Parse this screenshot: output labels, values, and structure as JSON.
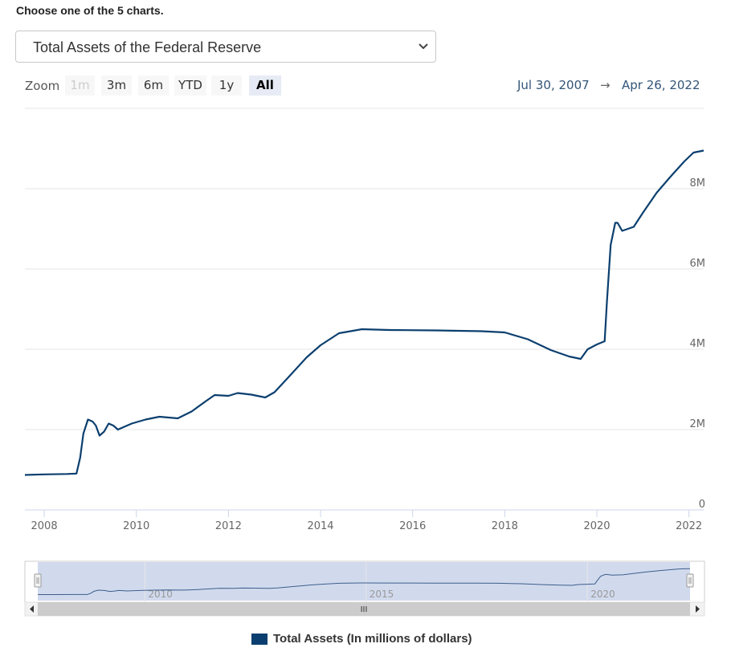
{
  "heading": "Choose one of the 5 charts.",
  "selector": {
    "value": "Total Assets of the Federal Reserve",
    "icon": "chevron-down-icon"
  },
  "zoom": {
    "label": "Zoom",
    "buttons": [
      {
        "label": "1m",
        "state": "disabled"
      },
      {
        "label": "3m",
        "state": "normal"
      },
      {
        "label": "6m",
        "state": "normal"
      },
      {
        "label": "YTD",
        "state": "normal"
      },
      {
        "label": "1y",
        "state": "normal"
      },
      {
        "label": "All",
        "state": "active"
      }
    ]
  },
  "range": {
    "from": "Jul 30, 2007",
    "arrow": "→",
    "to": "Apr 26, 2022"
  },
  "colors": {
    "series": "#0b3f6f",
    "navigator_mask": "rgba(102,133,194,0.3)",
    "grid": "#e6e6e6"
  },
  "chart_data": {
    "type": "line",
    "title": "",
    "xlabel": "",
    "ylabel": "",
    "x_range": [
      2007.58,
      2022.32
    ],
    "ylim": [
      0,
      10000000
    ],
    "x_ticks": [
      "2008",
      "2010",
      "2012",
      "2014",
      "2016",
      "2018",
      "2020",
      "2022"
    ],
    "y_ticks": [
      "0",
      "2M",
      "4M",
      "6M",
      "8M"
    ],
    "series": [
      {
        "name": "Total Assets (In millions of dollars)",
        "points": [
          [
            2007.58,
            870000
          ],
          [
            2008.0,
            885000
          ],
          [
            2008.5,
            895000
          ],
          [
            2008.7,
            905000
          ],
          [
            2008.78,
            1300000
          ],
          [
            2008.85,
            1900000
          ],
          [
            2008.95,
            2250000
          ],
          [
            2009.05,
            2200000
          ],
          [
            2009.12,
            2100000
          ],
          [
            2009.2,
            1850000
          ],
          [
            2009.3,
            1950000
          ],
          [
            2009.4,
            2150000
          ],
          [
            2009.5,
            2100000
          ],
          [
            2009.6,
            2000000
          ],
          [
            2009.7,
            2050000
          ],
          [
            2009.9,
            2150000
          ],
          [
            2010.2,
            2250000
          ],
          [
            2010.5,
            2320000
          ],
          [
            2010.9,
            2280000
          ],
          [
            2011.2,
            2450000
          ],
          [
            2011.5,
            2700000
          ],
          [
            2011.7,
            2860000
          ],
          [
            2012.0,
            2840000
          ],
          [
            2012.2,
            2910000
          ],
          [
            2012.5,
            2870000
          ],
          [
            2012.8,
            2800000
          ],
          [
            2013.0,
            2930000
          ],
          [
            2013.3,
            3300000
          ],
          [
            2013.7,
            3800000
          ],
          [
            2014.0,
            4100000
          ],
          [
            2014.4,
            4400000
          ],
          [
            2014.9,
            4500000
          ],
          [
            2015.5,
            4480000
          ],
          [
            2016.5,
            4470000
          ],
          [
            2017.5,
            4450000
          ],
          [
            2018.0,
            4420000
          ],
          [
            2018.5,
            4250000
          ],
          [
            2019.0,
            3980000
          ],
          [
            2019.4,
            3820000
          ],
          [
            2019.65,
            3760000
          ],
          [
            2019.8,
            4000000
          ],
          [
            2020.0,
            4120000
          ],
          [
            2020.17,
            4200000
          ],
          [
            2020.22,
            5200000
          ],
          [
            2020.3,
            6600000
          ],
          [
            2020.4,
            7150000
          ],
          [
            2020.45,
            7150000
          ],
          [
            2020.55,
            6950000
          ],
          [
            2020.8,
            7050000
          ],
          [
            2021.0,
            7400000
          ],
          [
            2021.3,
            7900000
          ],
          [
            2021.6,
            8300000
          ],
          [
            2021.9,
            8680000
          ],
          [
            2022.1,
            8900000
          ],
          [
            2022.32,
            8950000
          ]
        ]
      }
    ],
    "legend": "bottom-center",
    "grid": true
  },
  "navigator": {
    "labels": [
      "2010",
      "2015",
      "2020"
    ],
    "grip": "III"
  },
  "legend": {
    "label": "Total Assets (In millions of dollars)"
  }
}
